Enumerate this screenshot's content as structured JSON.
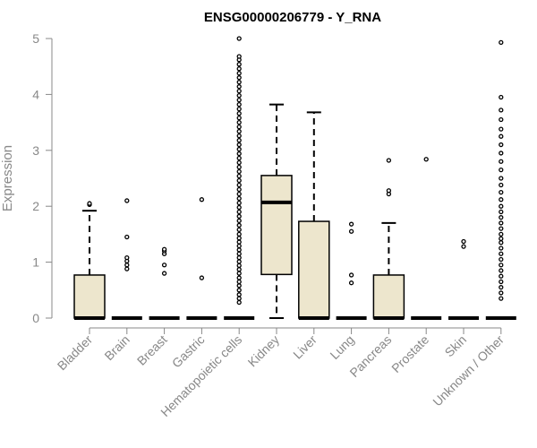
{
  "chart_data": {
    "type": "boxplot",
    "title": "ENSG00000206779 - Y_RNA",
    "xlabel": "",
    "ylabel": "Expression",
    "ylim": [
      0,
      5
    ],
    "yticks": [
      0,
      1,
      2,
      3,
      4,
      5
    ],
    "box_fill": "#ede6cd",
    "outlier_color": "#000000",
    "categories": [
      "Bladder",
      "Brain",
      "Breast",
      "Gastric",
      "Hematopoietic cells",
      "Kidney",
      "Liver",
      "Lung",
      "Pancreas",
      "Prostate",
      "Skin",
      "Unknown / Other"
    ],
    "boxes": [
      {
        "name": "Bladder",
        "q1": 0,
        "median": 0,
        "q3": 0.77,
        "whisker_low": 0,
        "whisker_high": 1.92,
        "outliers": [
          2.03,
          2.05
        ]
      },
      {
        "name": "Brain",
        "q1": 0,
        "median": 0,
        "q3": 0,
        "whisker_low": 0,
        "whisker_high": 0,
        "outliers": [
          0.88,
          0.95,
          1.02,
          1.08,
          1.45,
          2.1
        ]
      },
      {
        "name": "Breast",
        "q1": 0,
        "median": 0,
        "q3": 0,
        "whisker_low": 0,
        "whisker_high": 0,
        "outliers": [
          0.8,
          0.95,
          1.15,
          1.2,
          1.23
        ]
      },
      {
        "name": "Gastric",
        "q1": 0,
        "median": 0,
        "q3": 0,
        "whisker_low": 0,
        "whisker_high": 0,
        "outliers": [
          0.72,
          2.12
        ]
      },
      {
        "name": "Hematopoietic cells",
        "q1": 0,
        "median": 0,
        "q3": 0,
        "whisker_low": 0,
        "whisker_high": 0,
        "outliers": [
          0.28,
          0.35,
          0.42,
          0.5,
          0.58,
          0.65,
          0.72,
          0.8,
          0.87,
          0.94,
          1.01,
          1.08,
          1.15,
          1.22,
          1.29,
          1.36,
          1.43,
          1.5,
          1.58,
          1.66,
          1.74,
          1.82,
          1.9,
          1.98,
          2.06,
          2.14,
          2.22,
          2.3,
          2.38,
          2.46,
          2.54,
          2.62,
          2.7,
          2.78,
          2.86,
          2.94,
          3.02,
          3.1,
          3.18,
          3.26,
          3.34,
          3.42,
          3.5,
          3.58,
          3.66,
          3.74,
          3.82,
          3.9,
          3.98,
          4.06,
          4.14,
          4.22,
          4.3,
          4.38,
          4.46,
          4.54,
          4.62,
          4.68,
          5.0
        ]
      },
      {
        "name": "Kidney",
        "q1": 0.78,
        "median": 2.07,
        "q3": 2.55,
        "whisker_low": 0,
        "whisker_high": 3.82,
        "outliers": []
      },
      {
        "name": "Liver",
        "q1": 0,
        "median": 0,
        "q3": 1.73,
        "whisker_low": 0,
        "whisker_high": 3.68,
        "outliers": []
      },
      {
        "name": "Lung",
        "q1": 0,
        "median": 0,
        "q3": 0,
        "whisker_low": 0,
        "whisker_high": 0,
        "outliers": [
          0.63,
          0.77,
          1.55,
          1.68
        ]
      },
      {
        "name": "Pancreas",
        "q1": 0,
        "median": 0,
        "q3": 0.77,
        "whisker_low": 0,
        "whisker_high": 1.7,
        "outliers": [
          2.22,
          2.28,
          2.82
        ]
      },
      {
        "name": "Prostate",
        "q1": 0,
        "median": 0,
        "q3": 0,
        "whisker_low": 0,
        "whisker_high": 0,
        "outliers": [
          2.84
        ]
      },
      {
        "name": "Skin",
        "q1": 0,
        "median": 0,
        "q3": 0,
        "whisker_low": 0,
        "whisker_high": 0,
        "outliers": [
          1.28,
          1.37
        ]
      },
      {
        "name": "Unknown / Other",
        "q1": 0,
        "median": 0,
        "q3": 0,
        "whisker_low": 0,
        "whisker_high": 0,
        "outliers": [
          0.35,
          0.45,
          0.55,
          0.65,
          0.75,
          0.85,
          0.95,
          1.05,
          1.15,
          1.25,
          1.35,
          1.42,
          1.5,
          1.6,
          1.7,
          1.8,
          1.9,
          2.0,
          2.12,
          2.25,
          2.38,
          2.5,
          2.65,
          2.8,
          2.95,
          3.1,
          3.25,
          3.38,
          3.55,
          3.72,
          3.95,
          4.93
        ]
      }
    ]
  }
}
